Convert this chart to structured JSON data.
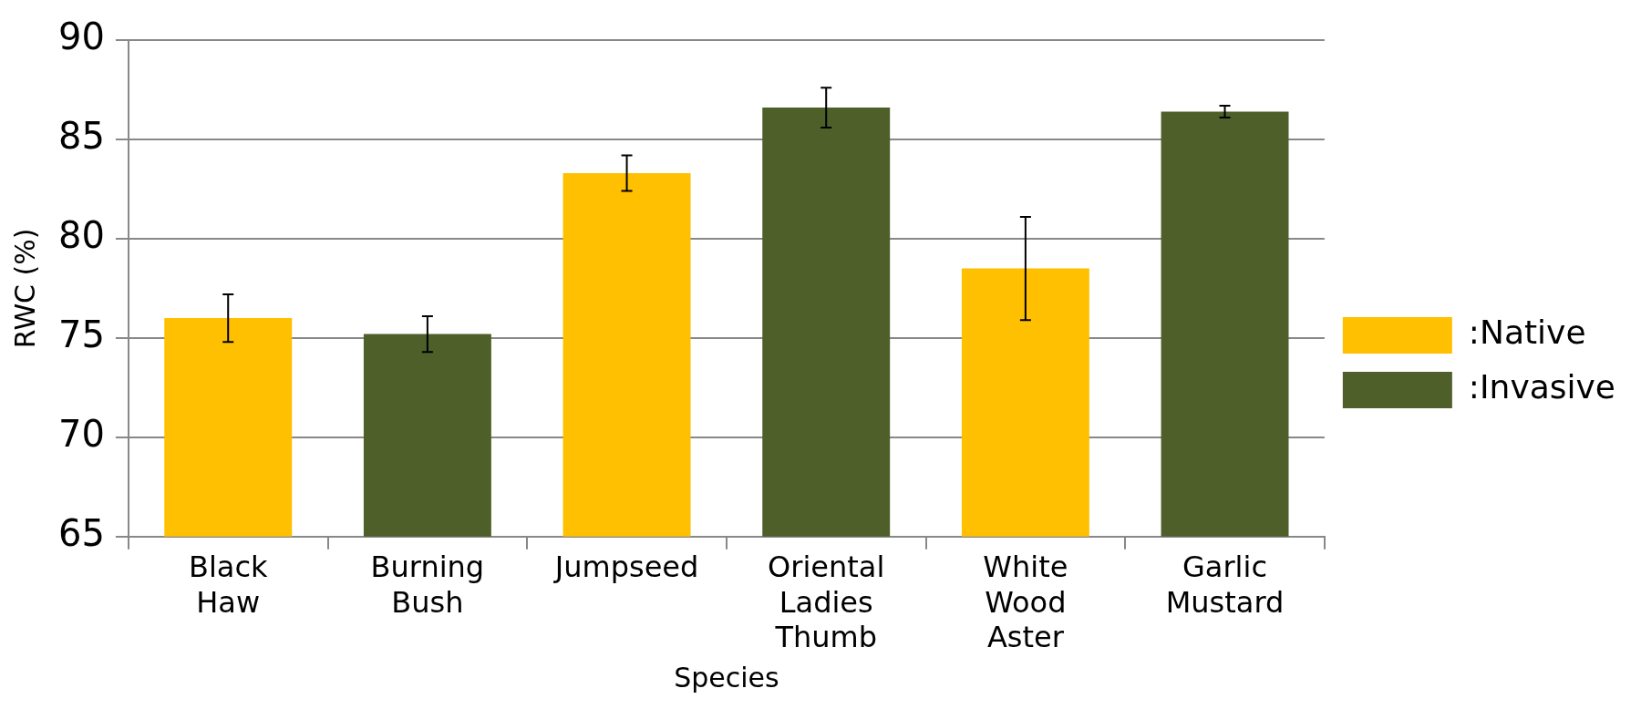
{
  "chart_data": {
    "type": "bar",
    "xlabel": "Species",
    "ylabel": "RWC (%)",
    "categories": [
      "Black Haw",
      "Burning Bush",
      "Jumpseed",
      "Oriental Ladies Thumb",
      "White Wood Aster",
      "Garlic Mustard"
    ],
    "ylim": [
      65,
      90
    ],
    "yticks": [
      65,
      70,
      75,
      80,
      85,
      90
    ],
    "grid": "y",
    "legend": "right",
    "series": [
      {
        "name": ":Native",
        "color": "#fec000",
        "values": [
          76.0,
          null,
          83.3,
          null,
          78.5,
          null
        ],
        "errors": [
          1.2,
          null,
          0.9,
          null,
          2.6,
          null
        ]
      },
      {
        "name": ":Invasive",
        "color": "#4e5f2a",
        "values": [
          null,
          75.2,
          null,
          86.6,
          null,
          86.4
        ],
        "errors": [
          null,
          0.9,
          null,
          1.0,
          null,
          0.3
        ]
      }
    ]
  }
}
